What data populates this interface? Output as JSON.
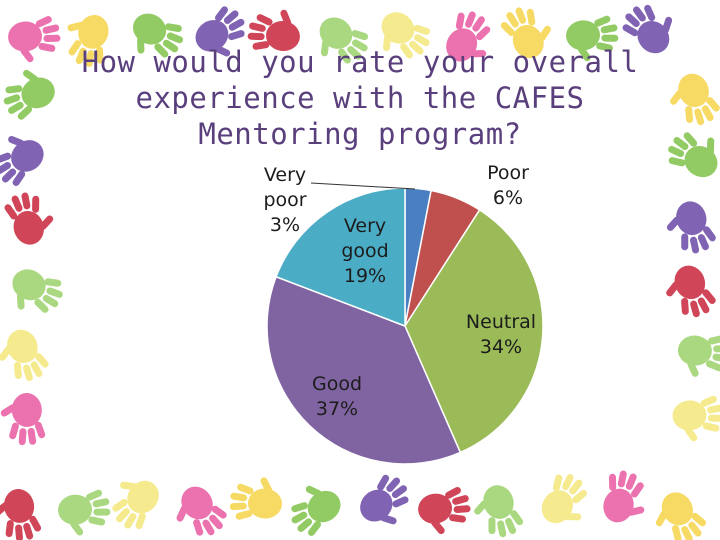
{
  "slide": {
    "title": "How would you rate your overall experience with the CAFES Mentoring program?"
  },
  "colors": {
    "background": "#ffffff",
    "title": "#5a3f7d",
    "handprints": [
      "#e85aa0",
      "#f5d44a",
      "#7fc24a",
      "#6a4aa6",
      "#c8263c",
      "#9bd26a",
      "#f4e77a"
    ]
  },
  "chart_data": {
    "type": "pie",
    "title": "How would you rate your overall experience with the CAFES Mentoring program?",
    "start": "12 o'clock",
    "direction": "clockwise",
    "slices": [
      {
        "category": "Very poor",
        "label_lines": [
          "Very",
          "poor"
        ],
        "value": 3,
        "value_label": "3%",
        "color": "#4a7fc1"
      },
      {
        "category": "Poor",
        "label_lines": [
          "Poor"
        ],
        "value": 6,
        "value_label": "6%",
        "color": "#c0504d"
      },
      {
        "category": "Neutral",
        "label_lines": [
          "Neutral"
        ],
        "value": 34,
        "value_label": "34%",
        "color": "#9bbb59"
      },
      {
        "category": "Good",
        "label_lines": [
          "Good"
        ],
        "value": 37,
        "value_label": "37%",
        "color": "#8064a2"
      },
      {
        "category": "Very good",
        "label_lines": [
          "Very",
          "good"
        ],
        "value": 19,
        "value_label": "19%",
        "color": "#4bacc6"
      }
    ]
  }
}
